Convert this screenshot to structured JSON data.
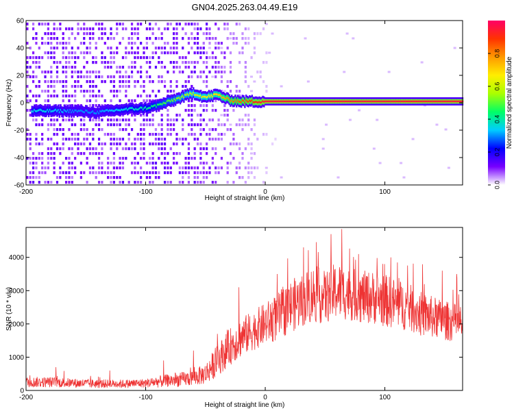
{
  "figure_title": "GN04.2025.263.04.49.E19",
  "colors": {
    "snr_line": "#ee3333",
    "axis": "#000000",
    "colormap": [
      "#ffffff",
      "#7700ff",
      "#0000ff",
      "#00ccff",
      "#00ff66",
      "#aaff00",
      "#ffee00",
      "#ff9900",
      "#ff3300",
      "#ff0066"
    ]
  },
  "chart_data": [
    {
      "type": "heatmap",
      "title": "",
      "xlabel": "Height of straight line (km)",
      "ylabel": "Frequency (Hz)",
      "xlim": [
        -200,
        165
      ],
      "ylim": [
        -60,
        60
      ],
      "xticks": [
        -200,
        -100,
        0,
        100
      ],
      "yticks": [
        -60,
        -40,
        -20,
        0,
        20,
        40,
        60
      ],
      "xtick_labels": [
        "-200",
        "-100",
        "0",
        "100"
      ],
      "ytick_labels": [
        "-60",
        "-40",
        "-20",
        "0",
        "20",
        "40",
        "60"
      ],
      "colorbar": {
        "label": "Normalized spectral amplitude",
        "range": [
          0,
          1
        ],
        "ticks": [
          0,
          0.2,
          0.4,
          0.6,
          0.8
        ],
        "tick_labels": [
          "0.0",
          "0.2",
          "0.4",
          "0.6",
          "0.8"
        ]
      },
      "ridge": {
        "name": "dominant frequency track",
        "x": [
          -195,
          -180,
          -160,
          -140,
          -120,
          -100,
          -90,
          -80,
          -70,
          -60,
          -50,
          -40,
          -30,
          -20,
          -10,
          0,
          20,
          50,
          100,
          165
        ],
        "y": [
          -6,
          -6,
          -6,
          -7,
          -5,
          -4,
          -2,
          1,
          4,
          7,
          4,
          6,
          2,
          1,
          1,
          1,
          1,
          1,
          1,
          1
        ],
        "amplitude": [
          0.35,
          0.35,
          0.3,
          0.3,
          0.35,
          0.4,
          0.45,
          0.5,
          0.55,
          0.6,
          0.65,
          0.7,
          0.8,
          0.85,
          0.9,
          0.95,
          0.95,
          0.95,
          0.95,
          0.95
        ]
      },
      "noise_region": {
        "x_range": [
          -200,
          -50
        ],
        "amplitude": [
          0.05,
          0.2
        ]
      }
    },
    {
      "type": "line",
      "title": "",
      "xlabel": "Height of straight line (km)",
      "ylabel": "SNR (10 * v/v)",
      "xlim": [
        -200,
        165
      ],
      "ylim": [
        0,
        4900
      ],
      "xticks": [
        -200,
        -100,
        0,
        100
      ],
      "yticks": [
        0,
        1000,
        2000,
        3000,
        4000
      ],
      "xtick_labels": [
        "-200",
        "-100",
        "0",
        "100"
      ],
      "ytick_labels": [
        "0",
        "1000",
        "2000",
        "3000",
        "4000"
      ],
      "series": [
        {
          "name": "SNR",
          "x": [
            -200,
            -180,
            -160,
            -140,
            -120,
            -100,
            -90,
            -80,
            -70,
            -60,
            -50,
            -40,
            -30,
            -20,
            -10,
            0,
            10,
            20,
            30,
            40,
            50,
            60,
            70,
            80,
            90,
            100,
            110,
            120,
            130,
            140,
            150,
            165
          ],
          "level": [
            250,
            250,
            220,
            200,
            200,
            220,
            260,
            300,
            330,
            380,
            500,
            900,
            1300,
            1600,
            1800,
            2000,
            2200,
            2500,
            2700,
            2900,
            2800,
            3000,
            2900,
            2800,
            2800,
            2700,
            2600,
            2500,
            2300,
            2200,
            2100,
            2000
          ],
          "spread": [
            200,
            200,
            180,
            170,
            160,
            170,
            220,
            250,
            270,
            300,
            400,
            600,
            700,
            750,
            750,
            800,
            900,
            1000,
            1000,
            1100,
            1000,
            1100,
            1000,
            1000,
            1000,
            1000,
            950,
            900,
            850,
            800,
            750,
            700
          ],
          "peaks": [
            [
              -175,
              700
            ],
            [
              -130,
              600
            ],
            [
              -85,
              900
            ],
            [
              -60,
              1200
            ],
            [
              -40,
              1700
            ],
            [
              -22,
              3100
            ],
            [
              10,
              3500
            ],
            [
              32,
              4300
            ],
            [
              55,
              4700
            ],
            [
              64,
              4850
            ],
            [
              78,
              4100
            ],
            [
              105,
              4000
            ],
            [
              148,
              3600
            ],
            [
              160,
              3500
            ]
          ]
        }
      ]
    }
  ]
}
